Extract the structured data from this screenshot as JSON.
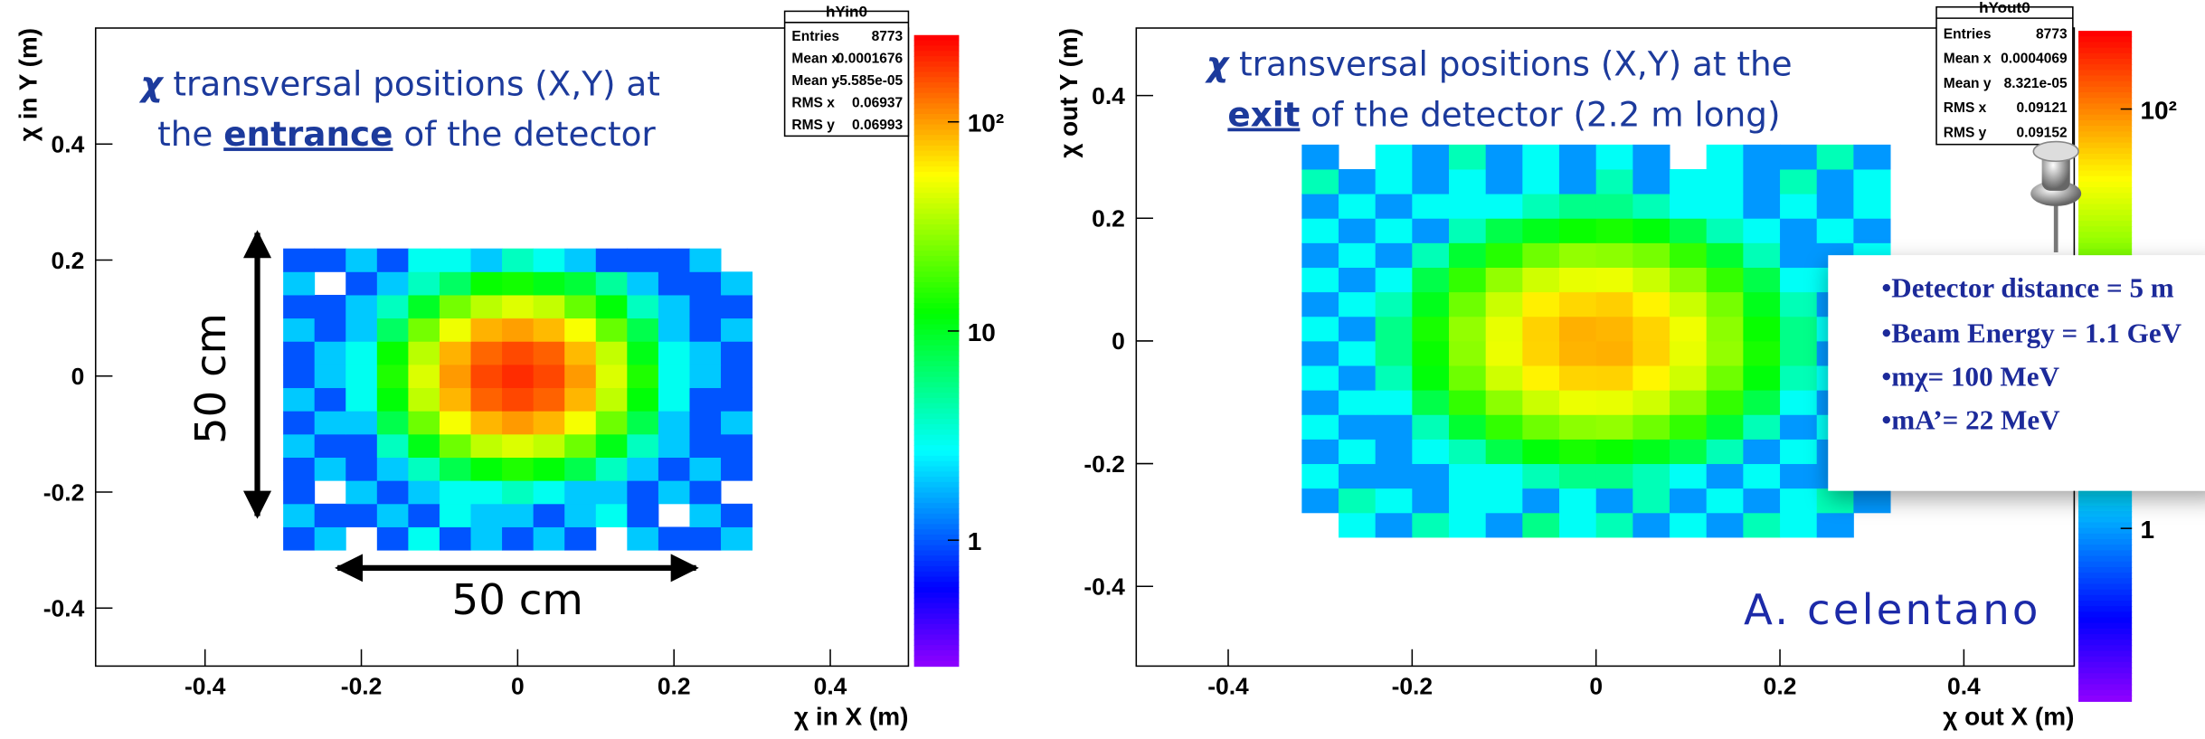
{
  "chart_data": [
    {
      "type": "heatmap",
      "title": {
        "symbol": "χ",
        "line1": "transversal positions (X,Y) at",
        "pre": "the",
        "em": "entrance",
        "post": "of the detector"
      },
      "xlabel": "χ in X (m)",
      "ylabel": "χ in Y (m)",
      "xbins": [
        -0.3,
        -0.26,
        -0.22,
        -0.18,
        -0.14,
        -0.1,
        -0.06,
        -0.02,
        0.02,
        0.06,
        0.1,
        0.14,
        0.18,
        0.22,
        0.26,
        0.3
      ],
      "ybins": [
        -0.3,
        -0.26,
        -0.22,
        -0.18,
        -0.14,
        -0.1,
        -0.06,
        -0.02,
        0.02,
        0.06,
        0.1,
        0.14,
        0.18,
        0.22
      ],
      "z": [
        [
          1,
          2,
          0,
          1,
          3,
          1,
          2,
          1,
          2,
          1,
          0,
          2,
          1,
          1,
          2
        ],
        [
          2,
          1,
          1,
          2,
          1,
          3,
          2,
          2,
          1,
          2,
          3,
          1,
          0,
          2,
          1
        ],
        [
          1,
          0,
          2,
          1,
          2,
          3,
          3,
          4,
          3,
          2,
          2,
          1,
          2,
          1,
          0
        ],
        [
          1,
          2,
          1,
          2,
          4,
          8,
          12,
          15,
          12,
          8,
          4,
          2,
          1,
          2,
          1
        ],
        [
          2,
          1,
          1,
          4,
          11,
          24,
          39,
          46,
          39,
          24,
          11,
          4,
          2,
          1,
          1
        ],
        [
          1,
          2,
          2,
          8,
          24,
          54,
          88,
          104,
          88,
          54,
          24,
          8,
          2,
          1,
          2
        ],
        [
          2,
          1,
          3,
          12,
          39,
          88,
          145,
          170,
          145,
          88,
          39,
          12,
          3,
          1,
          1
        ],
        [
          1,
          2,
          3,
          15,
          46,
          104,
          170,
          200,
          170,
          104,
          46,
          15,
          3,
          2,
          1
        ],
        [
          1,
          2,
          3,
          13,
          38,
          90,
          142,
          168,
          147,
          86,
          40,
          11,
          3,
          2,
          1
        ],
        [
          2,
          1,
          2,
          7,
          25,
          52,
          90,
          101,
          86,
          55,
          23,
          8,
          2,
          1,
          2
        ],
        [
          1,
          1,
          2,
          4,
          10,
          25,
          38,
          47,
          40,
          23,
          12,
          4,
          2,
          1,
          1
        ],
        [
          2,
          0,
          1,
          2,
          4,
          7,
          13,
          14,
          11,
          9,
          5,
          2,
          1,
          1,
          2
        ],
        [
          1,
          1,
          2,
          1,
          3,
          3,
          2,
          4,
          3,
          2,
          1,
          1,
          1,
          2,
          0
        ]
      ],
      "xlim": [
        -0.54,
        0.5
      ],
      "ylim": [
        -0.5,
        0.6
      ],
      "xticks": [
        -0.4,
        -0.2,
        0,
        0.2,
        0.4
      ],
      "yticks": [
        -0.4,
        -0.2,
        0,
        0.2,
        0.4
      ],
      "zlim": [
        0.25,
        260
      ],
      "zticks": [
        1,
        10,
        {
          "value": 100,
          "label": "10²"
        }
      ],
      "log_z": true,
      "colormap": "rainbow",
      "stats": {
        "name": "hYin0",
        "rows": [
          [
            "Entries",
            8773
          ],
          [
            "Mean x",
            0.0001676
          ],
          [
            "Mean y",
            "-5.585e-05"
          ],
          [
            "RMS x",
            0.06937
          ],
          [
            "RMS y",
            0.06993
          ]
        ]
      },
      "annotations": [
        "50 cm",
        "50 cm"
      ]
    },
    {
      "type": "heatmap",
      "title": {
        "symbol": "χ",
        "line1": "transversal positions (X,Y) at the",
        "em": "exit",
        "post": "of the detector (2.2 m long)"
      },
      "xlabel": "χ out X (m)",
      "ylabel": "χ out Y (m)",
      "xbins": [
        -0.32,
        -0.28,
        -0.24,
        -0.2,
        -0.16,
        -0.12,
        -0.08,
        -0.04,
        0,
        0.04,
        0.08,
        0.12,
        0.16,
        0.2,
        0.24,
        0.28,
        0.32
      ],
      "ybins": [
        -0.32,
        -0.28,
        -0.24,
        -0.2,
        -0.16,
        -0.12,
        -0.08,
        -0.04,
        0,
        0.04,
        0.08,
        0.12,
        0.16,
        0.2,
        0.24,
        0.28,
        0.32
      ],
      "z": [
        [
          0,
          2,
          1,
          3,
          2,
          1,
          4,
          2,
          3,
          1,
          2,
          1,
          3,
          2,
          1,
          0
        ],
        [
          1,
          3,
          2,
          1,
          2,
          2,
          1,
          2,
          1,
          3,
          1,
          2,
          1,
          2,
          3,
          1
        ],
        [
          2,
          1,
          1,
          1,
          2,
          2,
          3,
          4,
          4,
          3,
          2,
          1,
          2,
          1,
          1,
          2
        ],
        [
          1,
          2,
          1,
          2,
          3,
          6,
          9,
          11,
          10,
          8,
          6,
          3,
          1,
          2,
          1,
          2
        ],
        [
          2,
          1,
          1,
          3,
          7,
          13,
          19,
          23,
          24,
          19,
          13,
          7,
          3,
          1,
          2,
          1
        ],
        [
          1,
          2,
          2,
          6,
          13,
          23,
          34,
          42,
          41,
          35,
          23,
          13,
          6,
          2,
          1,
          2
        ],
        [
          2,
          1,
          3,
          9,
          19,
          35,
          51,
          62,
          63,
          50,
          35,
          19,
          9,
          3,
          2,
          1
        ],
        [
          1,
          2,
          4,
          10,
          23,
          42,
          62,
          76,
          78,
          63,
          41,
          24,
          11,
          4,
          1,
          2
        ],
        [
          2,
          1,
          4,
          11,
          24,
          41,
          63,
          78,
          75,
          62,
          43,
          23,
          10,
          4,
          2,
          1
        ],
        [
          1,
          2,
          3,
          8,
          19,
          34,
          52,
          61,
          64,
          51,
          34,
          20,
          8,
          3,
          1,
          2
        ],
        [
          2,
          1,
          2,
          6,
          13,
          24,
          35,
          41,
          42,
          34,
          23,
          13,
          6,
          2,
          2,
          1
        ],
        [
          1,
          2,
          1,
          3,
          7,
          12,
          19,
          24,
          23,
          20,
          13,
          7,
          3,
          1,
          1,
          2
        ],
        [
          2,
          1,
          2,
          1,
          3,
          6,
          8,
          10,
          11,
          9,
          6,
          3,
          2,
          1,
          2,
          1
        ],
        [
          1,
          2,
          1,
          2,
          2,
          2,
          3,
          4,
          4,
          3,
          2,
          2,
          1,
          2,
          1,
          2
        ],
        [
          3,
          1,
          2,
          1,
          2,
          1,
          2,
          1,
          3,
          1,
          2,
          2,
          1,
          3,
          1,
          2
        ],
        [
          1,
          0,
          2,
          1,
          3,
          1,
          2,
          1,
          2,
          1,
          0,
          2,
          1,
          1,
          3,
          1
        ]
      ],
      "xlim": [
        -0.5,
        0.52
      ],
      "ylim": [
        -0.53,
        0.51
      ],
      "xticks": [
        -0.4,
        -0.2,
        0,
        0.2,
        0.4
      ],
      "yticks": [
        -0.4,
        -0.2,
        0,
        0.2,
        0.4
      ],
      "zlim": [
        0.15,
        236
      ],
      "zticks": [
        1,
        {
          "value": 100,
          "label": "10²"
        }
      ],
      "log_z": true,
      "colormap": "rainbow",
      "stats": {
        "name": "hYout0",
        "rows": [
          [
            "Entries",
            8773
          ],
          [
            "Mean x",
            0.0004069
          ],
          [
            "Mean y",
            "8.321e-05"
          ],
          [
            "RMS x",
            0.09121
          ],
          [
            "RMS y",
            0.09152
          ]
        ]
      },
      "popup": [
        "•Detector distance = 5 m",
        "•Beam Energy = 1.1 GeV",
        "•mχ= 100 MeV",
        "•mA’= 22 MeV"
      ],
      "annotations": [
        "A. celentano"
      ]
    }
  ]
}
